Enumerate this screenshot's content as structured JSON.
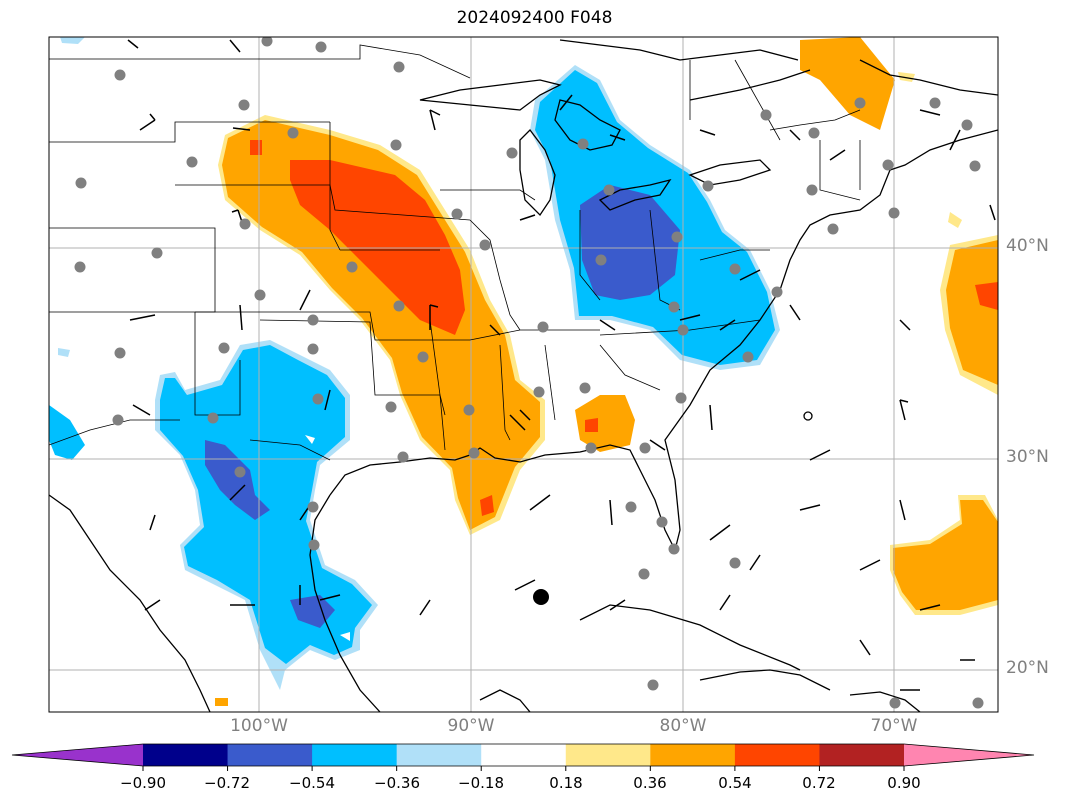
{
  "title": "2024092400 F048",
  "lat_labels": [
    "40°N",
    "30°N",
    "20°N"
  ],
  "lon_labels": [
    "100°W",
    "90°W",
    "80°W",
    "70°W"
  ],
  "colorbar": {
    "ticks": [
      "−0.90",
      "−0.72",
      "−0.54",
      "−0.36",
      "−0.18",
      "0.18",
      "0.36",
      "0.54",
      "0.72",
      "0.90"
    ],
    "colors": [
      "#9932cc",
      "#00008b",
      "#3a5bcc",
      "#00bfff",
      "#b0e0f8",
      "#ffffff",
      "#ffe88a",
      "#ffa500",
      "#ff4500",
      "#b22222",
      "#ff85b0"
    ]
  },
  "colors": {
    "grid": "#b0b0b0",
    "station": "#808080",
    "line": "#000000"
  }
}
